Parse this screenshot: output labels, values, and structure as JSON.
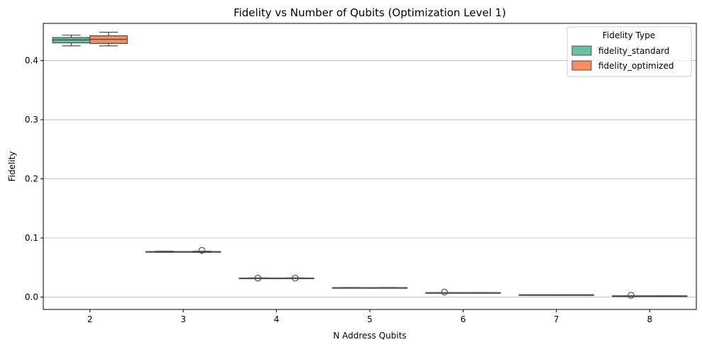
{
  "chart_data": {
    "type": "box",
    "title": "Fidelity vs Number of Qubits (Optimization Level 1)",
    "xlabel": "N Address Qubits",
    "ylabel": "Fidelity",
    "categories": [
      "2",
      "3",
      "4",
      "5",
      "6",
      "7",
      "8"
    ],
    "ylim": [
      -0.021,
      0.463
    ],
    "yticks": [
      "0.0",
      "0.1",
      "0.2",
      "0.3",
      "0.4"
    ],
    "grid": "y",
    "legend": {
      "title": "Fidelity Type",
      "placement": "top-right"
    },
    "series": [
      {
        "name": "fidelity_standard",
        "color": "#66c2a5",
        "boxes": [
          {
            "whislo": 0.425,
            "q1": 0.43,
            "med": 0.435,
            "q3": 0.439,
            "whishi": 0.443,
            "fliers": []
          },
          {
            "whislo": 0.0755,
            "q1": 0.076,
            "med": 0.0765,
            "q3": 0.077,
            "whishi": 0.0775,
            "fliers": []
          },
          {
            "whislo": 0.0315,
            "q1": 0.0318,
            "med": 0.032,
            "q3": 0.0322,
            "whishi": 0.0325,
            "fliers": [
              0.032
            ]
          },
          {
            "whislo": 0.0155,
            "q1": 0.0157,
            "med": 0.0158,
            "q3": 0.016,
            "whishi": 0.0162,
            "fliers": []
          },
          {
            "whislo": 0.0072,
            "q1": 0.0073,
            "med": 0.0074,
            "q3": 0.0075,
            "whishi": 0.0076,
            "fliers": [
              0.0085
            ]
          },
          {
            "whislo": 0.0036,
            "q1": 0.0037,
            "med": 0.0038,
            "q3": 0.0039,
            "whishi": 0.004,
            "fliers": []
          },
          {
            "whislo": 0.0017,
            "q1": 0.0018,
            "med": 0.0019,
            "q3": 0.002,
            "whishi": 0.0021,
            "fliers": [
              0.003
            ]
          }
        ]
      },
      {
        "name": "fidelity_optimized",
        "color": "#fc8d62",
        "boxes": [
          {
            "whislo": 0.425,
            "q1": 0.429,
            "med": 0.436,
            "q3": 0.442,
            "whishi": 0.448,
            "fliers": []
          },
          {
            "whislo": 0.0755,
            "q1": 0.076,
            "med": 0.0765,
            "q3": 0.077,
            "whishi": 0.0775,
            "fliers": [
              0.079
            ]
          },
          {
            "whislo": 0.0315,
            "q1": 0.0318,
            "med": 0.032,
            "q3": 0.0322,
            "whishi": 0.0325,
            "fliers": [
              0.032
            ]
          },
          {
            "whislo": 0.0155,
            "q1": 0.0157,
            "med": 0.0158,
            "q3": 0.016,
            "whishi": 0.0162,
            "fliers": []
          },
          {
            "whislo": 0.0072,
            "q1": 0.0073,
            "med": 0.0074,
            "q3": 0.0075,
            "whishi": 0.0076,
            "fliers": []
          },
          {
            "whislo": 0.0036,
            "q1": 0.0037,
            "med": 0.0038,
            "q3": 0.0039,
            "whishi": 0.004,
            "fliers": []
          },
          {
            "whislo": 0.0017,
            "q1": 0.0018,
            "med": 0.0019,
            "q3": 0.002,
            "whishi": 0.0021,
            "fliers": []
          }
        ]
      }
    ]
  }
}
